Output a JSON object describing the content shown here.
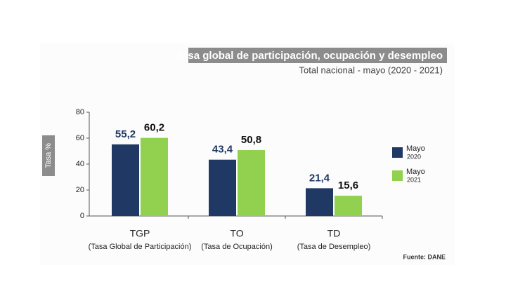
{
  "chart_data": {
    "type": "bar",
    "title": "Tasa global de participación, ocupación y desempleo",
    "subtitle": "Total nacional - mayo (2020 - 2021)",
    "y_label": "Tasa %",
    "source": "Fuente: DANE",
    "categories": [
      "TGP",
      "TO",
      "TD"
    ],
    "category_descriptions": [
      "(Tasa Global de Participación)",
      "(Tasa de Ocupación)",
      "(Tasa de Desempleo)"
    ],
    "series": [
      {
        "name": "Mayo",
        "name_sub": "2020",
        "color": "#1f3864",
        "label_color": "#1f3864",
        "values": [
          55.2,
          43.4,
          21.4
        ],
        "value_labels": [
          "55,2",
          "43,4",
          "21,4"
        ]
      },
      {
        "name": "Mayo",
        "name_sub": "2021",
        "color": "#92d050",
        "label_color": "#111111",
        "values": [
          60.2,
          50.8,
          15.6
        ],
        "value_labels": [
          "60,2",
          "50,8",
          "15,6"
        ]
      }
    ],
    "ylim": [
      0,
      80
    ],
    "yticks": [
      0,
      20,
      40,
      60,
      80
    ],
    "grid": false
  }
}
